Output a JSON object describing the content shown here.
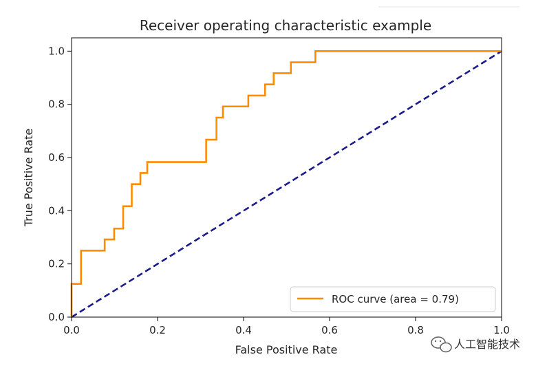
{
  "chart_data": {
    "type": "line",
    "title": "Receiver operating characteristic example",
    "xlabel": "False Positive Rate",
    "ylabel": "True Positive Rate",
    "xlim": [
      0.0,
      1.0
    ],
    "ylim": [
      0.0,
      1.05
    ],
    "xticks": [
      "0.0",
      "0.2",
      "0.4",
      "0.6",
      "0.8",
      "1.0"
    ],
    "yticks": [
      "0.0",
      "0.2",
      "0.4",
      "0.6",
      "0.8",
      "1.0"
    ],
    "grid": false,
    "legend_position": "lower-right",
    "series": [
      {
        "name": "ROC curve (area = 0.79)",
        "color": "#ff8c00",
        "style": "solid",
        "x": [
          0.0,
          0.0,
          0.022,
          0.022,
          0.077,
          0.077,
          0.099,
          0.099,
          0.12,
          0.12,
          0.14,
          0.14,
          0.16,
          0.16,
          0.176,
          0.176,
          0.313,
          0.313,
          0.337,
          0.337,
          0.352,
          0.352,
          0.411,
          0.411,
          0.45,
          0.45,
          0.47,
          0.47,
          0.51,
          0.51,
          0.567,
          0.567,
          1.0
        ],
        "y": [
          0.0,
          0.125,
          0.125,
          0.25,
          0.25,
          0.292,
          0.292,
          0.333,
          0.333,
          0.417,
          0.417,
          0.5,
          0.5,
          0.542,
          0.542,
          0.583,
          0.583,
          0.667,
          0.667,
          0.75,
          0.75,
          0.792,
          0.792,
          0.833,
          0.833,
          0.875,
          0.875,
          0.917,
          0.917,
          0.958,
          0.958,
          1.0,
          1.0
        ]
      },
      {
        "name": "",
        "color": "#1a1a8c",
        "style": "dashed",
        "x": [
          0.0,
          1.0
        ],
        "y": [
          0.0,
          1.0
        ]
      }
    ]
  },
  "watermark": {
    "text": "人工智能技术",
    "icon": "wechat-icon"
  }
}
